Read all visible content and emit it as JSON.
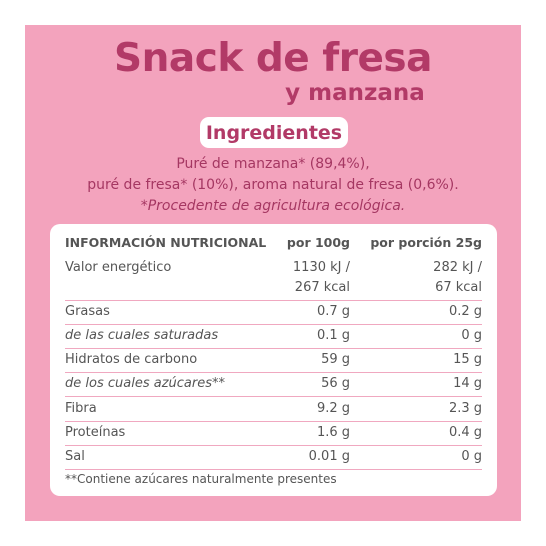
{
  "colors": {
    "panel": "#f3a3bd",
    "accent": "#b23a67",
    "table_bg": "#ffffff",
    "text": "#555555"
  },
  "title": {
    "line1": "Snack de fresa",
    "line2": "y manzana"
  },
  "ingredients": {
    "heading": "Ingredientes",
    "line1": "Puré de manzana* (89,4%),",
    "line2": "puré de fresa* (10%), aroma natural de fresa (0,6%).",
    "line3": "*Procedente de agricultura ecológica."
  },
  "table": {
    "headers": [
      "INFORMACIÓN NUTRICIONAL",
      "por 100g",
      "por porción 25g"
    ],
    "rows": [
      {
        "label": "Valor energético",
        "per100": "1130 kJ /",
        "portion": "282 kJ /"
      },
      {
        "label": "",
        "per100": "267 kcal",
        "portion": "67 kcal"
      },
      {
        "label": "Grasas",
        "per100": "0.7 g",
        "portion": "0.2 g"
      },
      {
        "label": "de las cuales saturadas",
        "per100": "0.1 g",
        "portion": "0 g"
      },
      {
        "label": "Hidratos de carbono",
        "per100": "59 g",
        "portion": "15 g"
      },
      {
        "label": "de los cuales azúcares**",
        "per100": "56 g",
        "portion": "14 g"
      },
      {
        "label": "Fibra",
        "per100": "9.2 g",
        "portion": "2.3 g"
      },
      {
        "label": "Proteínas",
        "per100": "1.6 g",
        "portion": "0.4 g"
      },
      {
        "label": "Sal",
        "per100": "0.01 g",
        "portion": "0 g"
      }
    ],
    "footnote": "**Contiene azúcares naturalmente presentes"
  }
}
